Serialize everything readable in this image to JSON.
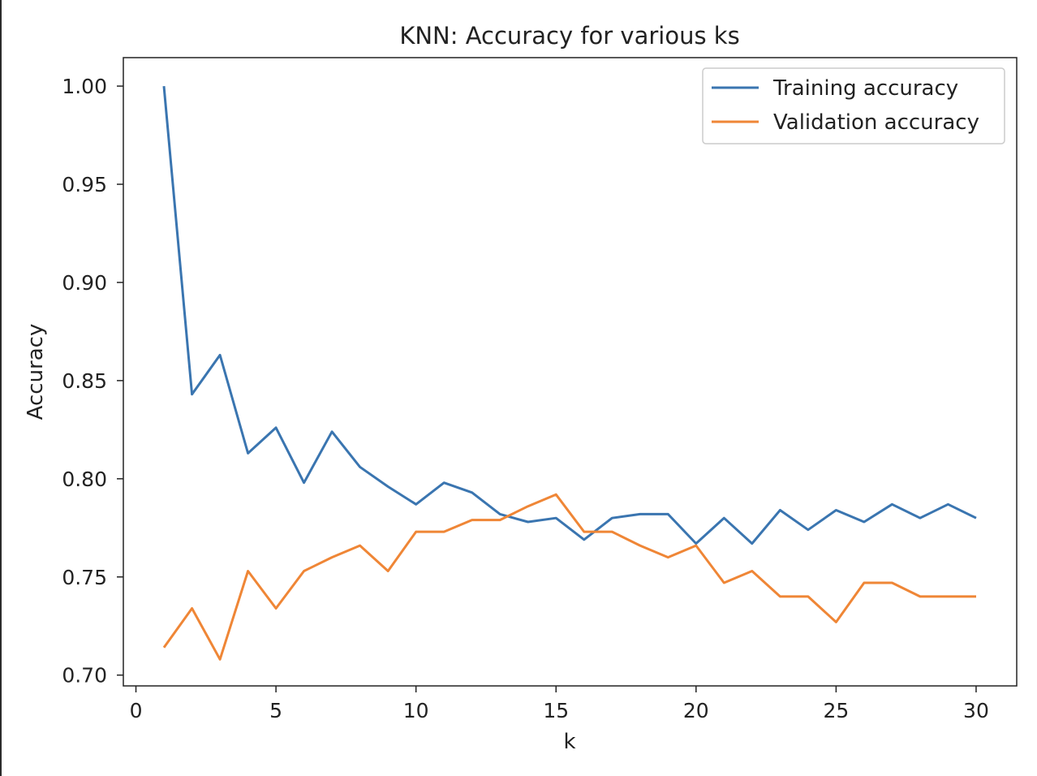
{
  "chart_data": {
    "type": "line",
    "title": "KNN: Accuracy for various ks",
    "xlabel": "k",
    "ylabel": "Accuracy",
    "xlim": [
      -0.45,
      31.45
    ],
    "ylim": [
      0.6945,
      1.0145
    ],
    "xticks": [
      0,
      5,
      10,
      15,
      20,
      25,
      30
    ],
    "yticks": [
      0.7,
      0.75,
      0.8,
      0.85,
      0.9,
      0.95,
      1.0
    ],
    "ytick_labels": [
      "0.70",
      "0.75",
      "0.80",
      "0.85",
      "0.90",
      "0.95",
      "1.00"
    ],
    "grid": false,
    "legend_position": "top-right",
    "x": [
      1,
      2,
      3,
      4,
      5,
      6,
      7,
      8,
      9,
      10,
      11,
      12,
      13,
      14,
      15,
      16,
      17,
      18,
      19,
      20,
      21,
      22,
      23,
      24,
      25,
      26,
      27,
      28,
      29,
      30
    ],
    "series": [
      {
        "name": "Training accuracy",
        "color": "#3a75b0",
        "values": [
          1.0,
          0.843,
          0.863,
          0.813,
          0.826,
          0.798,
          0.824,
          0.806,
          0.796,
          0.787,
          0.798,
          0.793,
          0.782,
          0.778,
          0.78,
          0.769,
          0.78,
          0.782,
          0.782,
          0.767,
          0.78,
          0.767,
          0.784,
          0.774,
          0.784,
          0.778,
          0.787,
          0.78,
          0.787,
          0.78
        ]
      },
      {
        "name": "Validation accuracy",
        "color": "#ef8636",
        "values": [
          0.714,
          0.734,
          0.708,
          0.753,
          0.734,
          0.753,
          0.76,
          0.766,
          0.753,
          0.773,
          0.773,
          0.779,
          0.779,
          0.786,
          0.792,
          0.773,
          0.773,
          0.766,
          0.76,
          0.766,
          0.747,
          0.753,
          0.74,
          0.74,
          0.727,
          0.747,
          0.747,
          0.74,
          0.74,
          0.74
        ]
      }
    ]
  }
}
